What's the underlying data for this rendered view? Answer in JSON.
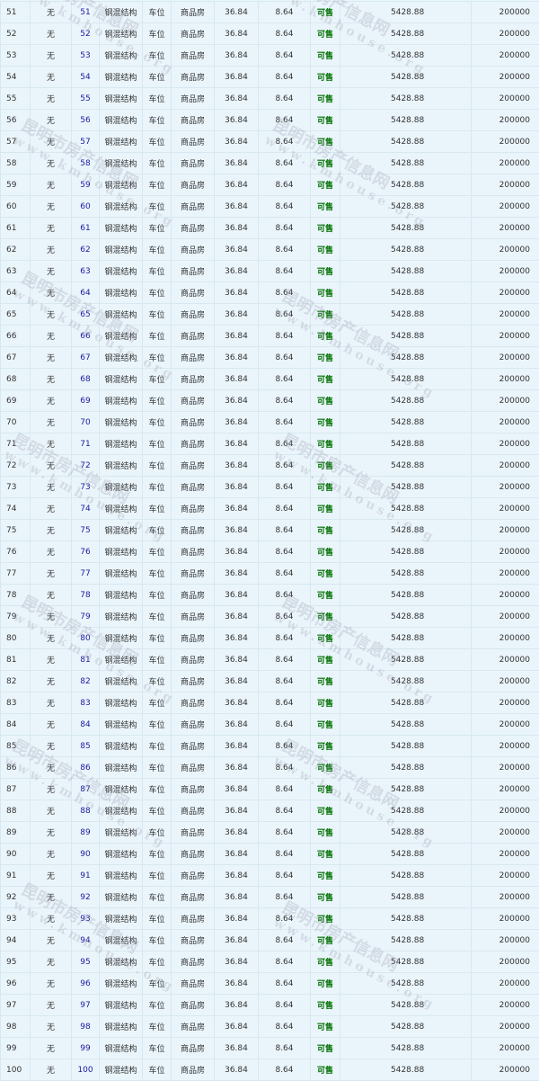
{
  "watermark": {
    "cn": "昆明市房产信息网",
    "url": "www.kmhouse.org"
  },
  "colors": {
    "background": "#eaf5fb",
    "room_link": "#1a1aa0",
    "status_available": "#007000"
  },
  "rows": [
    [
      "51",
      "无",
      "51",
      "钢混结构",
      "车位",
      "商品房",
      "36.84",
      "8.64",
      "可售",
      "5428.88",
      "200000"
    ],
    [
      "52",
      "无",
      "52",
      "钢混结构",
      "车位",
      "商品房",
      "36.84",
      "8.64",
      "可售",
      "5428.88",
      "200000"
    ],
    [
      "53",
      "无",
      "53",
      "钢混结构",
      "车位",
      "商品房",
      "36.84",
      "8.64",
      "可售",
      "5428.88",
      "200000"
    ],
    [
      "54",
      "无",
      "54",
      "钢混结构",
      "车位",
      "商品房",
      "36.84",
      "8.64",
      "可售",
      "5428.88",
      "200000"
    ],
    [
      "55",
      "无",
      "55",
      "钢混结构",
      "车位",
      "商品房",
      "36.84",
      "8.64",
      "可售",
      "5428.88",
      "200000"
    ],
    [
      "56",
      "无",
      "56",
      "钢混结构",
      "车位",
      "商品房",
      "36.84",
      "8.64",
      "可售",
      "5428.88",
      "200000"
    ],
    [
      "57",
      "无",
      "57",
      "钢混结构",
      "车位",
      "商品房",
      "36.84",
      "8.64",
      "可售",
      "5428.88",
      "200000"
    ],
    [
      "58",
      "无",
      "58",
      "钢混结构",
      "车位",
      "商品房",
      "36.84",
      "8.64",
      "可售",
      "5428.88",
      "200000"
    ],
    [
      "59",
      "无",
      "59",
      "钢混结构",
      "车位",
      "商品房",
      "36.84",
      "8.64",
      "可售",
      "5428.88",
      "200000"
    ],
    [
      "60",
      "无",
      "60",
      "钢混结构",
      "车位",
      "商品房",
      "36.84",
      "8.64",
      "可售",
      "5428.88",
      "200000"
    ],
    [
      "61",
      "无",
      "61",
      "钢混结构",
      "车位",
      "商品房",
      "36.84",
      "8.64",
      "可售",
      "5428.88",
      "200000"
    ],
    [
      "62",
      "无",
      "62",
      "钢混结构",
      "车位",
      "商品房",
      "36.84",
      "8.64",
      "可售",
      "5428.88",
      "200000"
    ],
    [
      "63",
      "无",
      "63",
      "钢混结构",
      "车位",
      "商品房",
      "36.84",
      "8.64",
      "可售",
      "5428.88",
      "200000"
    ],
    [
      "64",
      "无",
      "64",
      "钢混结构",
      "车位",
      "商品房",
      "36.84",
      "8.64",
      "可售",
      "5428.88",
      "200000"
    ],
    [
      "65",
      "无",
      "65",
      "钢混结构",
      "车位",
      "商品房",
      "36.84",
      "8.64",
      "可售",
      "5428.88",
      "200000"
    ],
    [
      "66",
      "无",
      "66",
      "钢混结构",
      "车位",
      "商品房",
      "36.84",
      "8.64",
      "可售",
      "5428.88",
      "200000"
    ],
    [
      "67",
      "无",
      "67",
      "钢混结构",
      "车位",
      "商品房",
      "36.84",
      "8.64",
      "可售",
      "5428.88",
      "200000"
    ],
    [
      "68",
      "无",
      "68",
      "钢混结构",
      "车位",
      "商品房",
      "36.84",
      "8.64",
      "可售",
      "5428.88",
      "200000"
    ],
    [
      "69",
      "无",
      "69",
      "钢混结构",
      "车位",
      "商品房",
      "36.84",
      "8.64",
      "可售",
      "5428.88",
      "200000"
    ],
    [
      "70",
      "无",
      "70",
      "钢混结构",
      "车位",
      "商品房",
      "36.84",
      "8.64",
      "可售",
      "5428.88",
      "200000"
    ],
    [
      "71",
      "无",
      "71",
      "钢混结构",
      "车位",
      "商品房",
      "36.84",
      "8.64",
      "可售",
      "5428.88",
      "200000"
    ],
    [
      "72",
      "无",
      "72",
      "钢混结构",
      "车位",
      "商品房",
      "36.84",
      "8.64",
      "可售",
      "5428.88",
      "200000"
    ],
    [
      "73",
      "无",
      "73",
      "钢混结构",
      "车位",
      "商品房",
      "36.84",
      "8.64",
      "可售",
      "5428.88",
      "200000"
    ],
    [
      "74",
      "无",
      "74",
      "钢混结构",
      "车位",
      "商品房",
      "36.84",
      "8.64",
      "可售",
      "5428.88",
      "200000"
    ],
    [
      "75",
      "无",
      "75",
      "钢混结构",
      "车位",
      "商品房",
      "36.84",
      "8.64",
      "可售",
      "5428.88",
      "200000"
    ],
    [
      "76",
      "无",
      "76",
      "钢混结构",
      "车位",
      "商品房",
      "36.84",
      "8.64",
      "可售",
      "5428.88",
      "200000"
    ],
    [
      "77",
      "无",
      "77",
      "钢混结构",
      "车位",
      "商品房",
      "36.84",
      "8.64",
      "可售",
      "5428.88",
      "200000"
    ],
    [
      "78",
      "无",
      "78",
      "钢混结构",
      "车位",
      "商品房",
      "36.84",
      "8.64",
      "可售",
      "5428.88",
      "200000"
    ],
    [
      "79",
      "无",
      "79",
      "钢混结构",
      "车位",
      "商品房",
      "36.84",
      "8.64",
      "可售",
      "5428.88",
      "200000"
    ],
    [
      "80",
      "无",
      "80",
      "钢混结构",
      "车位",
      "商品房",
      "36.84",
      "8.64",
      "可售",
      "5428.88",
      "200000"
    ],
    [
      "81",
      "无",
      "81",
      "钢混结构",
      "车位",
      "商品房",
      "36.84",
      "8.64",
      "可售",
      "5428.88",
      "200000"
    ],
    [
      "82",
      "无",
      "82",
      "钢混结构",
      "车位",
      "商品房",
      "36.84",
      "8.64",
      "可售",
      "5428.88",
      "200000"
    ],
    [
      "83",
      "无",
      "83",
      "钢混结构",
      "车位",
      "商品房",
      "36.84",
      "8.64",
      "可售",
      "5428.88",
      "200000"
    ],
    [
      "84",
      "无",
      "84",
      "钢混结构",
      "车位",
      "商品房",
      "36.84",
      "8.64",
      "可售",
      "5428.88",
      "200000"
    ],
    [
      "85",
      "无",
      "85",
      "钢混结构",
      "车位",
      "商品房",
      "36.84",
      "8.64",
      "可售",
      "5428.88",
      "200000"
    ],
    [
      "86",
      "无",
      "86",
      "钢混结构",
      "车位",
      "商品房",
      "36.84",
      "8.64",
      "可售",
      "5428.88",
      "200000"
    ],
    [
      "87",
      "无",
      "87",
      "钢混结构",
      "车位",
      "商品房",
      "36.84",
      "8.64",
      "可售",
      "5428.88",
      "200000"
    ],
    [
      "88",
      "无",
      "88",
      "钢混结构",
      "车位",
      "商品房",
      "36.84",
      "8.64",
      "可售",
      "5428.88",
      "200000"
    ],
    [
      "89",
      "无",
      "89",
      "钢混结构",
      "车位",
      "商品房",
      "36.84",
      "8.64",
      "可售",
      "5428.88",
      "200000"
    ],
    [
      "90",
      "无",
      "90",
      "钢混结构",
      "车位",
      "商品房",
      "36.84",
      "8.64",
      "可售",
      "5428.88",
      "200000"
    ],
    [
      "91",
      "无",
      "91",
      "钢混结构",
      "车位",
      "商品房",
      "36.84",
      "8.64",
      "可售",
      "5428.88",
      "200000"
    ],
    [
      "92",
      "无",
      "92",
      "钢混结构",
      "车位",
      "商品房",
      "36.84",
      "8.64",
      "可售",
      "5428.88",
      "200000"
    ],
    [
      "93",
      "无",
      "93",
      "钢混结构",
      "车位",
      "商品房",
      "36.84",
      "8.64",
      "可售",
      "5428.88",
      "200000"
    ],
    [
      "94",
      "无",
      "94",
      "钢混结构",
      "车位",
      "商品房",
      "36.84",
      "8.64",
      "可售",
      "5428.88",
      "200000"
    ],
    [
      "95",
      "无",
      "95",
      "钢混结构",
      "车位",
      "商品房",
      "36.84",
      "8.64",
      "可售",
      "5428.88",
      "200000"
    ],
    [
      "96",
      "无",
      "96",
      "钢混结构",
      "车位",
      "商品房",
      "36.84",
      "8.64",
      "可售",
      "5428.88",
      "200000"
    ],
    [
      "97",
      "无",
      "97",
      "钢混结构",
      "车位",
      "商品房",
      "36.84",
      "8.64",
      "可售",
      "5428.88",
      "200000"
    ],
    [
      "98",
      "无",
      "98",
      "钢混结构",
      "车位",
      "商品房",
      "36.84",
      "8.64",
      "可售",
      "5428.88",
      "200000"
    ],
    [
      "99",
      "无",
      "99",
      "钢混结构",
      "车位",
      "商品房",
      "36.84",
      "8.64",
      "可售",
      "5428.88",
      "200000"
    ],
    [
      "100",
      "无",
      "100",
      "钢混结构",
      "车位",
      "商品房",
      "36.84",
      "8.64",
      "可售",
      "5428.88",
      "200000"
    ]
  ]
}
